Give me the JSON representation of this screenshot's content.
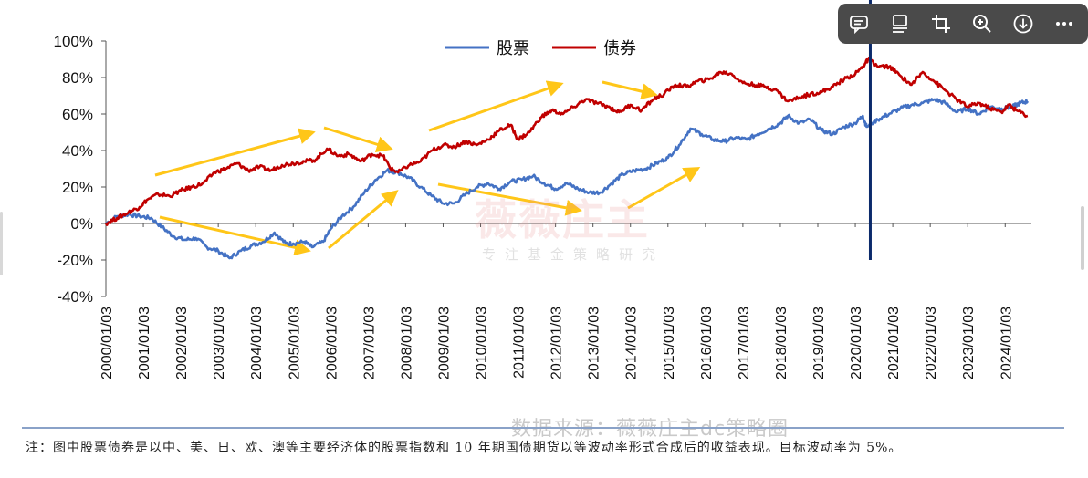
{
  "chart_data": {
    "type": "line",
    "title": "",
    "xlabel": "",
    "ylabel": "",
    "ylim": [
      -40,
      100
    ],
    "yticks": [
      "100%",
      "80%",
      "60%",
      "40%",
      "20%",
      "0%",
      "-20%",
      "-40%"
    ],
    "xtick_labels": [
      "2000/01/03",
      "2001/01/03",
      "2002/01/03",
      "2003/01/03",
      "2004/01/03",
      "2005/01/03",
      "2006/01/03",
      "2007/01/03",
      "2008/01/03",
      "2009/01/03",
      "2010/01/03",
      "2011/01/03",
      "2012/01/03",
      "2013/01/03",
      "2014/01/03",
      "2015/01/03",
      "2016/01/03",
      "2017/01/03",
      "2018/01/03",
      "2019/01/03",
      "2020/01/03",
      "2021/01/03",
      "2022/01/03",
      "2023/01/03",
      "2024/01/03"
    ],
    "legend_position": "top-center",
    "series": [
      {
        "name": "股票",
        "color": "#4472C4",
        "points": [
          [
            2000.0,
            0
          ],
          [
            2000.3,
            4
          ],
          [
            2000.6,
            5
          ],
          [
            2000.9,
            4
          ],
          [
            2001.2,
            3
          ],
          [
            2001.5,
            -2
          ],
          [
            2001.8,
            -7
          ],
          [
            2002.1,
            -9
          ],
          [
            2002.4,
            -8
          ],
          [
            2002.7,
            -13
          ],
          [
            2003.0,
            -15
          ],
          [
            2003.3,
            -19
          ],
          [
            2003.6,
            -15
          ],
          [
            2003.9,
            -12
          ],
          [
            2004.2,
            -10
          ],
          [
            2004.5,
            -5
          ],
          [
            2004.8,
            -11
          ],
          [
            2005.0,
            -11
          ],
          [
            2005.3,
            -10
          ],
          [
            2005.5,
            -13
          ],
          [
            2005.8,
            -10
          ],
          [
            2006.0,
            -3
          ],
          [
            2006.3,
            4
          ],
          [
            2006.6,
            9
          ],
          [
            2006.9,
            17
          ],
          [
            2007.2,
            24
          ],
          [
            2007.5,
            29
          ],
          [
            2007.8,
            28
          ],
          [
            2008.1,
            25
          ],
          [
            2008.4,
            20
          ],
          [
            2008.7,
            15
          ],
          [
            2009.0,
            11
          ],
          [
            2009.3,
            11
          ],
          [
            2009.6,
            16
          ],
          [
            2009.9,
            20
          ],
          [
            2010.2,
            22
          ],
          [
            2010.5,
            19
          ],
          [
            2010.8,
            23
          ],
          [
            2011.1,
            24
          ],
          [
            2011.4,
            26
          ],
          [
            2011.7,
            22
          ],
          [
            2012.0,
            19
          ],
          [
            2012.3,
            22
          ],
          [
            2012.6,
            19
          ],
          [
            2012.9,
            17
          ],
          [
            2013.2,
            17
          ],
          [
            2013.5,
            22
          ],
          [
            2013.8,
            27
          ],
          [
            2014.1,
            29
          ],
          [
            2014.4,
            30
          ],
          [
            2014.7,
            33
          ],
          [
            2015.0,
            36
          ],
          [
            2015.3,
            43
          ],
          [
            2015.6,
            52
          ],
          [
            2015.9,
            49
          ],
          [
            2016.2,
            46
          ],
          [
            2016.5,
            45
          ],
          [
            2016.8,
            47
          ],
          [
            2017.1,
            46
          ],
          [
            2017.4,
            49
          ],
          [
            2017.7,
            52
          ],
          [
            2018.0,
            55
          ],
          [
            2018.2,
            59
          ],
          [
            2018.5,
            55
          ],
          [
            2018.8,
            57
          ],
          [
            2019.1,
            51
          ],
          [
            2019.4,
            49
          ],
          [
            2019.7,
            53
          ],
          [
            2020.0,
            55
          ],
          [
            2020.2,
            59
          ],
          [
            2020.3,
            53
          ],
          [
            2020.6,
            57
          ],
          [
            2020.9,
            60
          ],
          [
            2021.2,
            63
          ],
          [
            2021.5,
            65
          ],
          [
            2021.8,
            66
          ],
          [
            2022.1,
            68
          ],
          [
            2022.4,
            66
          ],
          [
            2022.7,
            61
          ],
          [
            2023.0,
            63
          ],
          [
            2023.3,
            60
          ],
          [
            2023.6,
            64
          ],
          [
            2023.9,
            63
          ],
          [
            2024.2,
            64
          ],
          [
            2024.4,
            66
          ],
          [
            2024.6,
            67
          ]
        ]
      },
      {
        "name": "债券",
        "color": "#C00000",
        "points": [
          [
            2000.0,
            0
          ],
          [
            2000.3,
            3
          ],
          [
            2000.6,
            6
          ],
          [
            2000.9,
            9
          ],
          [
            2001.1,
            13
          ],
          [
            2001.4,
            16
          ],
          [
            2001.7,
            15
          ],
          [
            2002.0,
            18
          ],
          [
            2002.3,
            20
          ],
          [
            2002.6,
            22
          ],
          [
            2002.9,
            28
          ],
          [
            2003.2,
            30
          ],
          [
            2003.5,
            33
          ],
          [
            2003.8,
            29
          ],
          [
            2004.1,
            31
          ],
          [
            2004.4,
            29
          ],
          [
            2004.7,
            32
          ],
          [
            2005.0,
            33
          ],
          [
            2005.3,
            34
          ],
          [
            2005.6,
            35
          ],
          [
            2005.9,
            41
          ],
          [
            2006.2,
            37
          ],
          [
            2006.5,
            38
          ],
          [
            2006.8,
            34
          ],
          [
            2007.1,
            38
          ],
          [
            2007.4,
            37
          ],
          [
            2007.6,
            30
          ],
          [
            2007.8,
            28
          ],
          [
            2008.1,
            32
          ],
          [
            2008.4,
            34
          ],
          [
            2008.7,
            40
          ],
          [
            2009.0,
            43
          ],
          [
            2009.3,
            42
          ],
          [
            2009.6,
            45
          ],
          [
            2009.9,
            43
          ],
          [
            2010.2,
            46
          ],
          [
            2010.5,
            51
          ],
          [
            2010.8,
            54
          ],
          [
            2011.0,
            46
          ],
          [
            2011.3,
            50
          ],
          [
            2011.6,
            58
          ],
          [
            2011.9,
            62
          ],
          [
            2012.2,
            60
          ],
          [
            2012.5,
            64
          ],
          [
            2012.8,
            68
          ],
          [
            2013.1,
            66
          ],
          [
            2013.4,
            64
          ],
          [
            2013.7,
            61
          ],
          [
            2014.0,
            65
          ],
          [
            2014.3,
            62
          ],
          [
            2014.6,
            68
          ],
          [
            2014.9,
            71
          ],
          [
            2015.2,
            76
          ],
          [
            2015.5,
            75
          ],
          [
            2015.8,
            78
          ],
          [
            2016.1,
            79
          ],
          [
            2016.4,
            83
          ],
          [
            2016.7,
            82
          ],
          [
            2017.0,
            77
          ],
          [
            2017.3,
            76
          ],
          [
            2017.6,
            75
          ],
          [
            2017.9,
            73
          ],
          [
            2018.2,
            67
          ],
          [
            2018.5,
            69
          ],
          [
            2018.8,
            71
          ],
          [
            2019.1,
            72
          ],
          [
            2019.4,
            75
          ],
          [
            2019.7,
            79
          ],
          [
            2020.0,
            82
          ],
          [
            2020.2,
            86
          ],
          [
            2020.35,
            90
          ],
          [
            2020.6,
            86
          ],
          [
            2020.9,
            86
          ],
          [
            2021.2,
            81
          ],
          [
            2021.5,
            76
          ],
          [
            2021.8,
            83
          ],
          [
            2022.1,
            78
          ],
          [
            2022.4,
            73
          ],
          [
            2022.7,
            68
          ],
          [
            2023.0,
            64
          ],
          [
            2023.3,
            66
          ],
          [
            2023.6,
            63
          ],
          [
            2023.9,
            61
          ],
          [
            2024.1,
            65
          ],
          [
            2024.3,
            62
          ],
          [
            2024.6,
            59
          ]
        ]
      }
    ],
    "vertical_marker_x": 2020.4
  },
  "note_text": "注：图中股票债券是以中、美、日、欧、澳等主要经济体的股票指数和 10 年期国债期货以等波动率形式合成后的收益表现。目标波动率为 5%。",
  "source_text": "数据来源：薇薇庄主dc策略圈",
  "watermark": {
    "main": "薇薇庄主",
    "sub": "专注基金策略研究"
  },
  "toolbar": {
    "icons": [
      "comment-icon",
      "text-icon",
      "crop-icon",
      "zoom-in-icon",
      "download-icon",
      "more-icon"
    ],
    "bg_color": "#4a4a4a"
  }
}
